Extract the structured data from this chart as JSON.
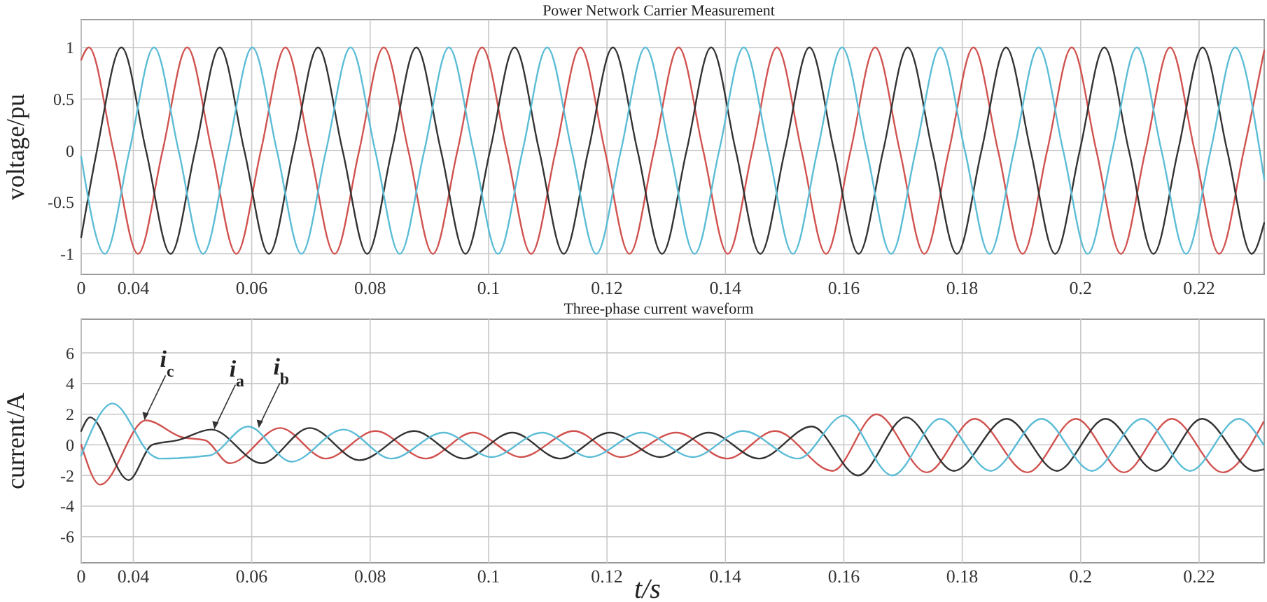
{
  "chart_data": [
    {
      "type": "line",
      "title": "Power Network Carrier Measurement",
      "ylabel": "voltage/pu",
      "xlim": [
        0.0312,
        0.231
      ],
      "ylim": [
        -1.2,
        1.27
      ],
      "xticks": [
        {
          "value": 0.0312,
          "label": "0"
        },
        0.04,
        0.06,
        0.08,
        0.1,
        0.12,
        0.14,
        0.16,
        0.18,
        0.2,
        0.22
      ],
      "yticks": [
        -1,
        -0.5,
        0,
        0.5,
        1
      ],
      "grid": true,
      "series": [
        {
          "color": "#d0524f",
          "x": [
            0.0312,
            0.0325,
            0.03665,
            0.0408,
            0.04495,
            0.0491,
            0.05325,
            0.0574,
            0.06155,
            0.0657,
            0.06985,
            0.074,
            0.07815,
            0.0823,
            0.08645,
            0.0906,
            0.09475,
            0.0989,
            0.10305,
            0.1072,
            0.11135,
            0.1155,
            0.11965,
            0.1238,
            0.12795,
            0.1321,
            0.13625,
            0.1404,
            0.14455,
            0.1487,
            0.15285,
            0.157,
            0.16115,
            0.1653,
            0.16945,
            0.1736,
            0.17775,
            0.1819,
            0.18605,
            0.1902,
            0.19435,
            0.1985,
            0.20265,
            0.2068,
            0.21095,
            0.2151,
            0.21925,
            0.2234,
            0.22755,
            0.231
          ],
          "values": [
            0.88,
            1,
            0,
            -1,
            0,
            1,
            0,
            -1,
            0,
            1,
            0,
            -1,
            0,
            1,
            0,
            -1,
            0,
            1,
            0,
            -1,
            0,
            1,
            0,
            -1,
            0,
            1,
            0,
            -1,
            0,
            1,
            0,
            -1,
            0,
            1,
            0,
            -1,
            0,
            1,
            0,
            -1,
            0,
            1,
            0,
            -1,
            0,
            1,
            0,
            -1,
            0,
            0.97
          ]
        },
        {
          "color": "#333333",
          "x": [
            0.0312,
            0.03385,
            0.038,
            0.04215,
            0.0463,
            0.05045,
            0.0546,
            0.05875,
            0.0629,
            0.06705,
            0.0712,
            0.07535,
            0.0795,
            0.08365,
            0.0878,
            0.09195,
            0.0961,
            0.10025,
            0.1044,
            0.10855,
            0.1127,
            0.11685,
            0.121,
            0.12515,
            0.1293,
            0.13345,
            0.1376,
            0.14175,
            0.1459,
            0.15005,
            0.1542,
            0.15835,
            0.1625,
            0.16665,
            0.1708,
            0.17495,
            0.1791,
            0.18325,
            0.1874,
            0.19155,
            0.1957,
            0.19985,
            0.204,
            0.20815,
            0.2123,
            0.21645,
            0.2206,
            0.22475,
            0.2289,
            0.231
          ],
          "values": [
            -0.84,
            0,
            1,
            0,
            -1,
            0,
            1,
            0,
            -1,
            0,
            1,
            0,
            -1,
            0,
            1,
            0,
            -1,
            0,
            1,
            0,
            -1,
            0,
            1,
            0,
            -1,
            0,
            1,
            0,
            -1,
            0,
            1,
            0,
            -1,
            0,
            1,
            0,
            -1,
            0,
            1,
            0,
            -1,
            0,
            1,
            0,
            -1,
            0,
            1,
            0,
            -1,
            -0.7
          ]
        },
        {
          "color": "#5bbcd6",
          "x": [
            0.0312,
            0.0352,
            0.03935,
            0.0435,
            0.04765,
            0.0518,
            0.05595,
            0.0601,
            0.06425,
            0.0684,
            0.07255,
            0.0767,
            0.08085,
            0.085,
            0.08915,
            0.0933,
            0.09745,
            0.1016,
            0.10575,
            0.1099,
            0.11405,
            0.1182,
            0.12235,
            0.1265,
            0.13065,
            0.1348,
            0.13895,
            0.1431,
            0.14725,
            0.1514,
            0.15555,
            0.1597,
            0.16385,
            0.168,
            0.17215,
            0.1763,
            0.18045,
            0.1846,
            0.18875,
            0.1929,
            0.19705,
            0.2012,
            0.20535,
            0.2095,
            0.21365,
            0.2178,
            0.22195,
            0.2261,
            0.23025,
            0.231
          ],
          "values": [
            -0.06,
            -1,
            0,
            1,
            0,
            -1,
            0,
            1,
            0,
            -1,
            0,
            1,
            0,
            -1,
            0,
            1,
            0,
            -1,
            0,
            1,
            0,
            -1,
            0,
            1,
            0,
            -1,
            0,
            1,
            0,
            -1,
            0,
            1,
            0,
            -1,
            0,
            1,
            0,
            -1,
            0,
            1,
            0,
            -1,
            0,
            1,
            0,
            -1,
            0,
            1,
            0,
            -0.28
          ]
        }
      ]
    },
    {
      "type": "line",
      "title": "Three-phase current waveform",
      "xlabel": "t/s",
      "ylabel": "current/A",
      "xlim": [
        0.0312,
        0.231
      ],
      "ylim": [
        -7.7,
        8.2
      ],
      "xticks": [
        {
          "value": 0.0312,
          "label": "0"
        },
        0.04,
        0.06,
        0.08,
        0.1,
        0.12,
        0.14,
        0.16,
        0.18,
        0.2,
        0.22
      ],
      "yticks": [
        -6,
        -4,
        -2,
        0,
        2,
        4,
        6
      ],
      "grid": true,
      "series": [
        {
          "color": "#d0524f",
          "x": [
            0.0312,
            0.0344,
            0.0421,
            0.0482,
            0.0521,
            0.0563,
            0.0648,
            0.0725,
            0.0809,
            0.0894,
            0.0974,
            0.1055,
            0.1144,
            0.1224,
            0.1317,
            0.1403,
            0.1484,
            0.1581,
            0.1655,
            0.174,
            0.1821,
            0.191,
            0.1992,
            0.2073,
            0.2154,
            0.224,
            0.2309
          ],
          "values": [
            0,
            -2.6,
            1.6,
            0.5,
            0.3,
            -1.2,
            1.1,
            -0.9,
            0.9,
            -0.9,
            0.8,
            -0.8,
            0.9,
            -0.8,
            0.8,
            -0.9,
            0.9,
            -1.7,
            2.0,
            -1.8,
            1.7,
            -1.8,
            1.7,
            -1.8,
            1.7,
            -1.8,
            1.5
          ]
        },
        {
          "color": "#333333",
          "x": [
            0.0312,
            0.0327,
            0.0392,
            0.0432,
            0.0475,
            0.0532,
            0.0617,
            0.0698,
            0.0782,
            0.0874,
            0.0959,
            0.104,
            0.1121,
            0.1205,
            0.129,
            0.1372,
            0.1457,
            0.1546,
            0.1624,
            0.1705,
            0.1786,
            0.1875,
            0.196,
            0.2042,
            0.2127,
            0.2205,
            0.2294,
            0.2309
          ],
          "values": [
            0.9,
            1.8,
            -2.3,
            0,
            0.3,
            1.0,
            -1.2,
            1.1,
            -1.0,
            0.9,
            -0.9,
            0.8,
            -0.9,
            0.8,
            -0.8,
            0.8,
            -0.9,
            1.2,
            -2.0,
            1.8,
            -1.7,
            1.7,
            -1.7,
            1.7,
            -1.7,
            1.7,
            -1.7,
            -1.6
          ]
        },
        {
          "color": "#5bbcd6",
          "x": [
            0.0312,
            0.0365,
            0.0432,
            0.0444,
            0.0528,
            0.0594,
            0.0667,
            0.0755,
            0.0836,
            0.0924,
            0.1005,
            0.109,
            0.1171,
            0.1259,
            0.1345,
            0.143,
            0.1523,
            0.16,
            0.1682,
            0.1763,
            0.1848,
            0.1934,
            0.2019,
            0.2104,
            0.2185,
            0.2267,
            0.2309
          ],
          "values": [
            -0.7,
            2.7,
            -0.7,
            -0.9,
            -0.7,
            1.2,
            -1.1,
            1.0,
            -0.9,
            0.8,
            -0.8,
            0.8,
            -0.8,
            0.8,
            -0.8,
            0.9,
            -0.9,
            1.9,
            -2.0,
            1.7,
            -1.7,
            1.7,
            -1.7,
            1.7,
            -1.7,
            1.7,
            0
          ]
        }
      ],
      "annotations": [
        {
          "text": "i$_{c}$",
          "x": 0.0419,
          "y": 1.6
        },
        {
          "text": "i$_{a}$",
          "x": 0.0537,
          "y": 1.0
        },
        {
          "text": "i$_{b}$",
          "x": 0.0612,
          "y": 1.1
        }
      ]
    }
  ]
}
